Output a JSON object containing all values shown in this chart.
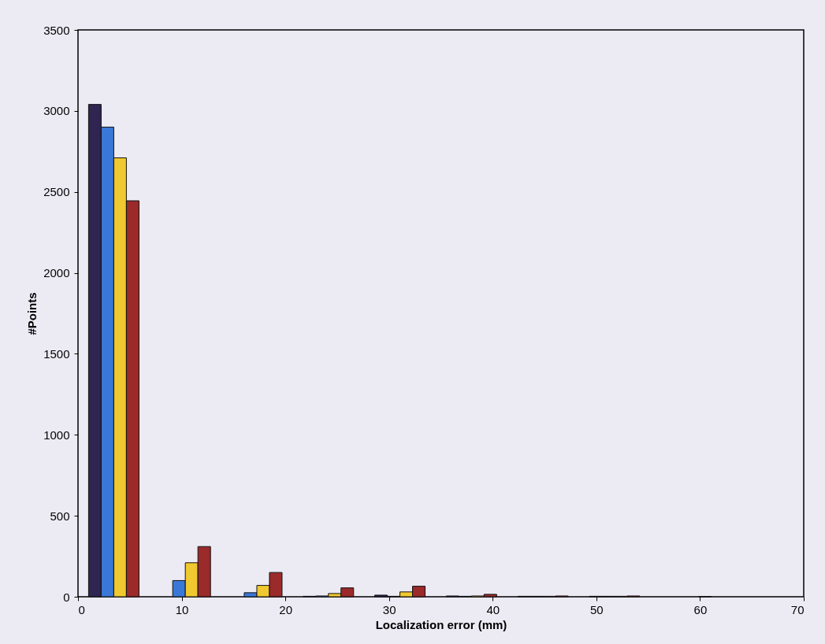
{
  "chart_data": {
    "type": "bar",
    "xlabel": "Localization error (mm)",
    "ylabel": "#Points",
    "x": [
      3.45,
      10.35,
      17.25,
      24.15,
      31.05,
      37.95,
      44.85,
      51.75,
      58.65
    ],
    "series": [
      {
        "color": "#2e2550",
        "values": [
          3040,
          null,
          null,
          3,
          10,
          5,
          3,
          3,
          null
        ]
      },
      {
        "color": "#3a78d8",
        "values": [
          2900,
          100,
          25,
          5,
          3,
          3,
          3,
          3,
          null
        ]
      },
      {
        "color": "#f0c830",
        "values": [
          2710,
          210,
          70,
          20,
          30,
          5,
          3,
          3,
          null
        ]
      },
      {
        "color": "#9b2a2a",
        "values": [
          2445,
          310,
          150,
          55,
          65,
          15,
          5,
          5,
          2
        ]
      }
    ],
    "xlim": [
      0,
      70
    ],
    "xticks": [
      0,
      10,
      20,
      30,
      40,
      50,
      60,
      70
    ],
    "ylim": [
      0,
      3500
    ],
    "yticks": [
      0,
      500,
      1000,
      1500,
      2000,
      2500,
      3000,
      3500
    ],
    "grid": false
  }
}
